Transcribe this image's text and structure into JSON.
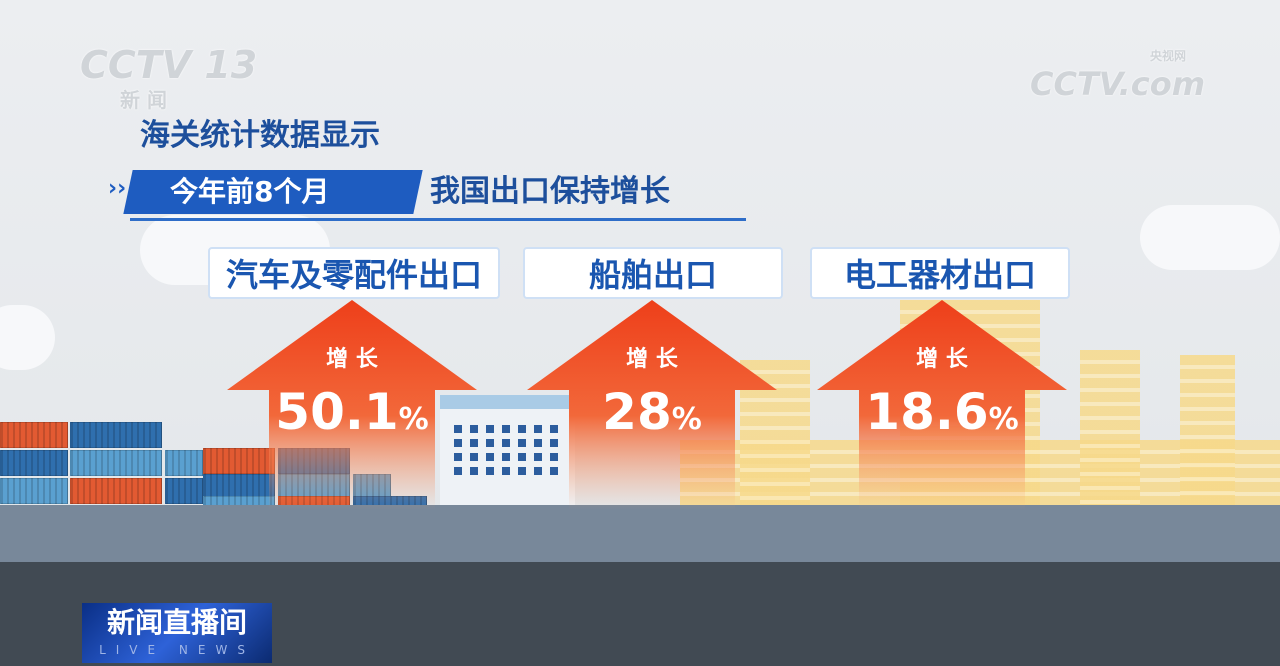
{
  "channel_logo": {
    "text": "CCTV 13",
    "sub": "新 闻"
  },
  "site_logo": {
    "text": "CCTV.com",
    "sub": "央视网"
  },
  "headline": {
    "line1": "海关统计数据显示",
    "period": "今年前8个月",
    "line2": "我国出口保持增长"
  },
  "items": [
    {
      "label": "汽车及零配件出口",
      "growth_label": "增 长",
      "value": "50.1",
      "unit": "%"
    },
    {
      "label": "船舶出口",
      "growth_label": "增 长",
      "value": "28",
      "unit": "%"
    },
    {
      "label": "电工器材出口",
      "growth_label": "增 长",
      "value": "18.6",
      "unit": "%"
    }
  ],
  "program_logo": {
    "text": "新闻直播间",
    "sub": "LIVE NEWS"
  },
  "colors": {
    "accent_blue": "#1e5cc0",
    "arrow_red": "#f04a20",
    "text_blue": "#1a56b0"
  }
}
